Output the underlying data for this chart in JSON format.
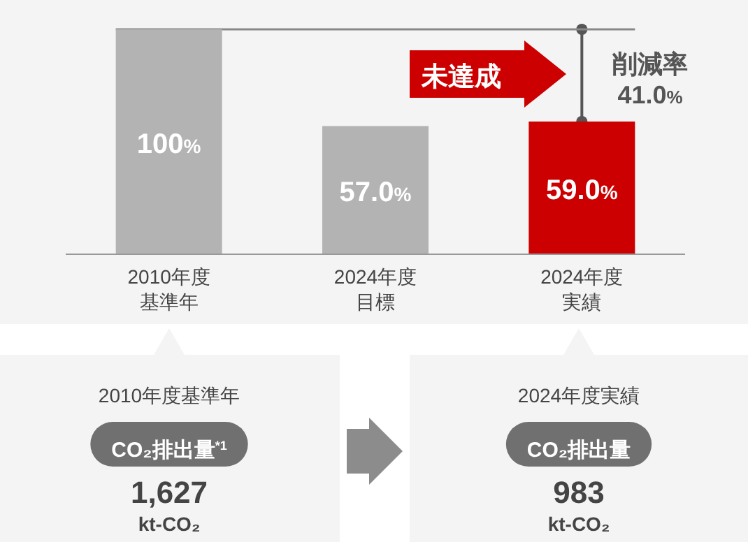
{
  "chart_data": [
    {
      "type": "bar",
      "categories": [
        "2010年度基準年",
        "2024年度目標",
        "2024年度実績"
      ],
      "values": [
        100,
        57.0,
        59.0
      ],
      "colors": [
        "#b3b3b3",
        "#b3b3b3",
        "#cc0000"
      ],
      "value_labels": [
        "100%",
        "57.0%",
        "59.0%"
      ],
      "ref_lines": [
        {
          "axis": "y",
          "value": 100,
          "color": "#888888"
        }
      ],
      "annotations": [
        "未達成",
        "削減率\n41.0%"
      ],
      "tick_labels": "x"
    },
    {
      "type": "other",
      "annotations": [
        "2010年度基準年",
        "CO₂排出量$^{*1}$",
        "1,627",
        "kt-CO₂",
        "2024年度実績",
        "CO₂排出量",
        "983",
        "kt-CO₂"
      ]
    }
  ]
}
